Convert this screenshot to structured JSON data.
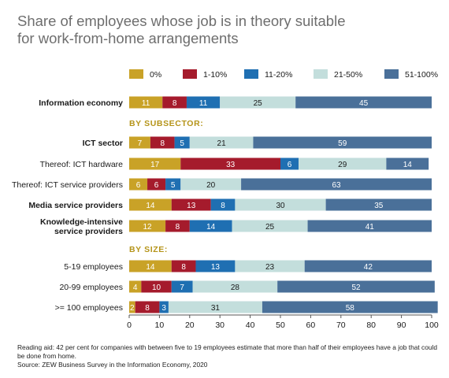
{
  "chart_data": {
    "type": "bar",
    "stacked": true,
    "orientation": "horizontal",
    "title_lines": [
      "Share of employees whose job is in theory suitable",
      "for work-from-home arrangements"
    ],
    "legend": [
      {
        "label": "0%",
        "color": "#c9a227"
      },
      {
        "label": "1-10%",
        "color": "#a51b2c"
      },
      {
        "label": "11-20%",
        "color": "#1f6fb2"
      },
      {
        "label": "21-50%",
        "color": "#c3dedc"
      },
      {
        "label": "51-100%",
        "color": "#4a7099"
      }
    ],
    "xlim": [
      0,
      100
    ],
    "xticks": [
      "0",
      "10",
      "20",
      "30",
      "40",
      "50",
      "60",
      "70",
      "80",
      "90",
      "100"
    ],
    "section_headers": [
      "BY SUBSECTOR:",
      "BY SIZE:"
    ],
    "rows": [
      {
        "label_lines": [
          "Information economy"
        ],
        "bold": true,
        "values": [
          11,
          8,
          11,
          25,
          45
        ]
      },
      {
        "label_lines": [
          "ICT sector"
        ],
        "bold": true,
        "values": [
          7,
          8,
          5,
          21,
          59
        ]
      },
      {
        "label_lines": [
          "Thereof: ICT hardware"
        ],
        "bold": false,
        "values": [
          17,
          33,
          6,
          29,
          14
        ]
      },
      {
        "label_lines": [
          "Thereof: ICT service providers"
        ],
        "bold": false,
        "values": [
          6,
          6,
          5,
          20,
          63
        ]
      },
      {
        "label_lines": [
          "Media service providers"
        ],
        "bold": true,
        "values": [
          14,
          13,
          8,
          30,
          35
        ]
      },
      {
        "label_lines": [
          "Knowledge-intensive",
          "service providers"
        ],
        "bold": true,
        "values": [
          12,
          8,
          14,
          25,
          41
        ]
      },
      {
        "label_lines": [
          "5-19 employees"
        ],
        "bold": false,
        "values": [
          14,
          8,
          13,
          23,
          42
        ]
      },
      {
        "label_lines": [
          "20-99 employees"
        ],
        "bold": false,
        "values": [
          4,
          10,
          7,
          28,
          52
        ]
      },
      {
        "label_lines": [
          ">= 100 employees"
        ],
        "bold": false,
        "values": [
          2,
          8,
          3,
          31,
          58
        ]
      }
    ]
  },
  "footnote": {
    "reading_aid": "Reading aid: 42 per cent for companies with between five to 19 employees estimate that more than half of their employees have a job that could be done from home.",
    "source": "Source: ZEW Business Survey in the Information Economy, 2020"
  }
}
